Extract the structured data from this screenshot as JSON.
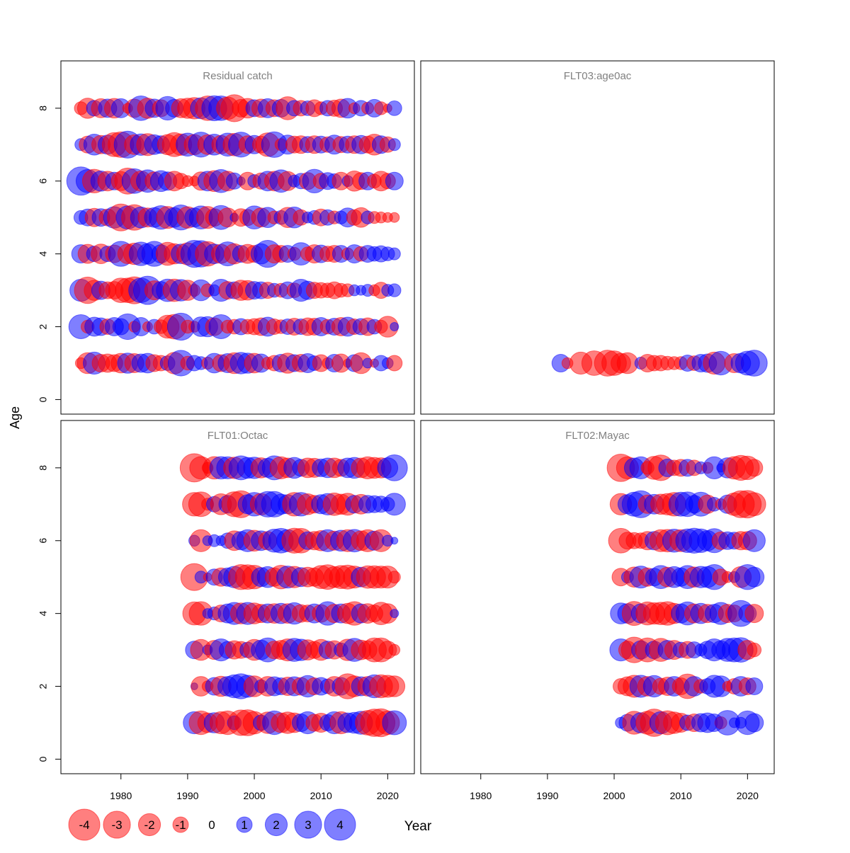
{
  "chart_data": {
    "type": "scatter",
    "xlabel": "Year",
    "ylabel": "Age",
    "xlim": [
      1971,
      2024
    ],
    "ylim": [
      -0.4,
      9.3
    ],
    "x_ticks": [
      1980,
      1990,
      2000,
      2010,
      2020
    ],
    "y_ticks": [
      0,
      2,
      4,
      6,
      8
    ],
    "colors": {
      "negative": "#ff0000",
      "positive": "#0000ff",
      "opacity": 0.5
    },
    "legend": {
      "placement": "bottom-left",
      "labels": [
        "-4",
        "-3",
        "-2",
        "-1",
        "0",
        "1",
        "2",
        "3",
        "4"
      ],
      "values": [
        -4,
        -3,
        -2,
        -1,
        0,
        1,
        2,
        3,
        4
      ]
    },
    "panels": [
      {
        "title": "Residual catch",
        "ages": [
          1,
          2,
          3,
          4,
          5,
          6,
          7,
          8
        ],
        "years": [
          1974,
          1975,
          1976,
          1977,
          1978,
          1979,
          1980,
          1981,
          1982,
          1983,
          1984,
          1985,
          1986,
          1987,
          1988,
          1989,
          1990,
          1991,
          1992,
          1993,
          1994,
          1995,
          1996,
          1997,
          1998,
          1999,
          2000,
          2001,
          2002,
          2003,
          2004,
          2005,
          2006,
          2007,
          2008,
          2009,
          2010,
          2011,
          2012,
          2013,
          2014,
          2015,
          2016,
          2017,
          2018,
          2019,
          2020,
          2021
        ],
        "residuals": [
          [
            -0.5,
            -1.8,
            2.0,
            -1.3,
            -1.4,
            -1.2,
            -1.6,
            1.7,
            -1.5,
            1.4,
            1.6,
            -1.2,
            -1.0,
            0.9,
            -1.9,
            2.7,
            -0.8,
            1.0,
            0.7,
            -0.6,
            1.6,
            -1.2,
            1.5,
            -1.8,
            1.9,
            1.7,
            -1.6,
            1.4,
            -0.6,
            -1.0,
            1.3,
            -1.7,
            1.2,
            -1.3,
            1.5,
            0.9,
            -1.2,
            -0.5,
            1.3,
            -1.4,
            -0.3,
            1.2,
            -1.8,
            0.4,
            -0.3,
            1.0,
            0.5,
            -1.0
          ],
          [
            2.4,
            -0.7,
            1.5,
            1.3,
            -1.0,
            1.4,
            1.1,
            2.7,
            -0.5,
            1.4,
            -0.4,
            0.9,
            -0.8,
            -2.2,
            -2.5,
            3.0,
            -0.7,
            -0.5,
            1.6,
            1.7,
            -1.3,
            2.4,
            -0.7,
            -0.9,
            1.1,
            -0.9,
            -1.1,
            -1.3,
            1.5,
            -1.0,
            -0.8,
            1.0,
            -1.2,
            1.0,
            -1.3,
            -1.2,
            1.4,
            -0.9,
            1.2,
            -1.4,
            1.5,
            -1.0,
            1.1,
            -1.3,
            0.9,
            -0.7,
            -1.8,
            0.3
          ],
          [
            2.0,
            -2.9,
            -1.7,
            1.4,
            -1.2,
            -1.3,
            -2.5,
            -2.5,
            -3.0,
            2.5,
            3.3,
            -1.5,
            1.3,
            2.1,
            -2.1,
            1.9,
            -1.7,
            -0.6,
            1.8,
            -0.7,
            0.5,
            2.0,
            -1.3,
            1.2,
            -1.7,
            -1.6,
            1.3,
            1.2,
            -1.1,
            0.8,
            -0.8,
            1.2,
            -0.9,
            2.0,
            1.4,
            -1.1,
            -1.0,
            -0.9,
            -1.2,
            -0.8,
            -0.7,
            0.5,
            0.4,
            0.6,
            -0.5,
            -1.1,
            0.6,
            0.7
          ],
          [
            1.4,
            -1.5,
            1.0,
            -1.6,
            1.0,
            -1.3,
            2.6,
            -1.6,
            -1.9,
            2.3,
            1.7,
            2.6,
            1.4,
            -2.2,
            -1.7,
            1.6,
            -2.0,
            3.0,
            2.9,
            -2.5,
            1.6,
            -1.5,
            2.4,
            -1.7,
            1.2,
            -1.5,
            -1.2,
            1.7,
            3.0,
            -1.4,
            -1.2,
            1.2,
            -0.7,
            2.1,
            -0.8,
            -1.4,
            1.3,
            -1.0,
            -1.2,
            1.2,
            -0.6,
            1.4,
            -0.9,
            1.2,
            0.9,
            1.1,
            0.8,
            0.6
          ],
          [
            0.8,
            1.2,
            -1.4,
            1.3,
            -1.2,
            1.9,
            -3.0,
            2.2,
            -2.7,
            1.8,
            -1.5,
            1.6,
            2.3,
            -2.0,
            1.6,
            2.6,
            -1.9,
            1.5,
            2.2,
            -2.0,
            -1.3,
            2.4,
            -1.5,
            0.3,
            -1.3,
            -1.1,
            2.2,
            -1.5,
            1.7,
            -0.7,
            0.8,
            -1.7,
            1.8,
            -1.0,
            0.5,
            0.8,
            -1.2,
            1.0,
            -0.7,
            0.7,
            1.5,
            -1.0,
            -1.6,
            0.7,
            -0.6,
            -0.5,
            -0.4,
            -0.4
          ],
          [
            3.3,
            2.2,
            -2.3,
            1.7,
            -1.6,
            1.3,
            -1.5,
            -2.8,
            2.5,
            -1.7,
            2.1,
            -1.4,
            1.8,
            1.4,
            -1.6,
            -1.0,
            -0.5,
            -0.4,
            -1.4,
            1.6,
            -1.8,
            2.2,
            -1.6,
            1.1,
            0.3,
            -1.3,
            0.7,
            -1.1,
            1.6,
            -1.6,
            2.1,
            -1.5,
            0.6,
            1.0,
            -1.2,
            2.3,
            -1.0,
            1.2,
            0.9,
            -1.3,
            0.5,
            -1.7,
            -1.2,
            1.3,
            -0.8,
            -1.6,
            -1.0,
            1.3
          ],
          [
            0.6,
            -1.2,
            1.8,
            -1.4,
            1.5,
            -2.4,
            -2.7,
            3.0,
            -1.6,
            1.9,
            -2.0,
            1.6,
            1.3,
            -1.7,
            -2.4,
            -1.9,
            2.2,
            -1.7,
            2.6,
            -1.6,
            1.8,
            -1.4,
            2.2,
            -2.1,
            2.6,
            -1.3,
            1.4,
            -1.2,
            -2.3,
            2.7,
            -0.6,
            1.5,
            -1.2,
            -1.3,
            1.1,
            -1.3,
            1.2,
            -1.0,
            1.5,
            -1.1,
            1.2,
            -1.3,
            1.4,
            -1.2,
            -1.8,
            1.3,
            -1.0,
            0.6
          ],
          [
            -0.7,
            -1.7,
            1.0,
            -1.5,
            1.4,
            -1.6,
            1.5,
            -0.4,
            -1.4,
            2.5,
            -1.7,
            1.4,
            -1.2,
            2.3,
            1.3,
            -1.5,
            -1.7,
            -1.9,
            1.8,
            -2.5,
            2.6,
            2.5,
            -2.1,
            -3.0,
            -1.3,
            -1.6,
            1.2,
            -1.4,
            1.5,
            -1.2,
            1.3,
            -2.2,
            1.0,
            -1.0,
            0.9,
            -1.2,
            -0.7,
            1.0,
            -1.1,
            -1.4,
            1.6,
            -0.5,
            1.0,
            -0.6,
            1.3,
            -0.7,
            -0.3,
            0.9
          ]
        ]
      },
      {
        "title": "FLT03:age0ac",
        "ages": [
          1
        ],
        "years": [
          1992,
          1993,
          1995,
          1997,
          1999,
          2000,
          2001,
          2002,
          2004,
          2005,
          2006,
          2007,
          2008,
          2009,
          2010,
          2011,
          2012,
          2013,
          2014,
          2015,
          2016,
          2018,
          2019,
          2020,
          2021
        ],
        "residuals": [
          [
            1.3,
            -0.5,
            -2.0,
            -2.5,
            -2.8,
            -2.5,
            -1.6,
            -1.8,
            0.6,
            -1.3,
            -1.0,
            -1.0,
            -0.8,
            -0.7,
            -0.7,
            1.1,
            -0.9,
            1.3,
            1.4,
            -2.0,
            2.3,
            -1.5,
            1.6,
            2.4,
            2.8
          ]
        ]
      },
      {
        "title": "FLT01:Octac",
        "ages": [
          1,
          2,
          3,
          4,
          5,
          6,
          7,
          8
        ],
        "years": [
          1991,
          1992,
          1993,
          1994,
          1995,
          1996,
          1997,
          1998,
          1999,
          2000,
          2001,
          2002,
          2003,
          2004,
          2005,
          2006,
          2007,
          2008,
          2009,
          2010,
          2011,
          2012,
          2013,
          2014,
          2015,
          2016,
          2017,
          2018,
          2019,
          2020,
          2021
        ],
        "residuals": [
          [
            2.0,
            -2.3,
            -1.6,
            1.7,
            -2.0,
            -2.3,
            0.8,
            -2.7,
            -2.8,
            -2.1,
            1.0,
            -1.9,
            2.3,
            -1.6,
            -1.9,
            -1.6,
            1.3,
            2.0,
            -1.2,
            -1.5,
            1.1,
            2.0,
            -2.0,
            1.6,
            1.8,
            2.2,
            -2.5,
            -3.1,
            -3.2,
            -2.3,
            2.4
          ],
          [
            0.2,
            -1.6,
            -0.5,
            1.3,
            -1.7,
            1.6,
            2.2,
            2.6,
            2.0,
            -1.8,
            0.7,
            -1.6,
            1.5,
            1.2,
            -1.4,
            1.5,
            -1.3,
            1.9,
            -1.2,
            1.3,
            0.9,
            -1.6,
            1.3,
            -2.6,
            -1.8,
            1.5,
            -1.6,
            2.2,
            -2.2,
            -2.0,
            -1.8
          ],
          [
            1.3,
            -1.8,
            0.4,
            -1.5,
            2.0,
            1.2,
            -1.4,
            -1.2,
            1.0,
            -1.8,
            1.6,
            2.4,
            -1.3,
            -1.5,
            -2.0,
            2.2,
            1.9,
            -1.7,
            -1.2,
            -1.8,
            1.3,
            -1.4,
            0.8,
            -1.9,
            2.2,
            -1.6,
            -1.4,
            -2.4,
            -2.4,
            -1.3,
            -0.5
          ],
          [
            -2.2,
            -2.3,
            0.4,
            0.7,
            -1.2,
            1.5,
            2.0,
            -1.8,
            2.0,
            -1.8,
            -1.4,
            1.5,
            -1.6,
            1.7,
            -1.6,
            1.9,
            -1.3,
            -1.2,
            1.5,
            -1.3,
            2.3,
            -1.4,
            1.5,
            -1.7,
            -2.3,
            1.5,
            -1.6,
            -1.2,
            -2.1,
            -1.6,
            0.3
          ],
          [
            -3.0,
            0.6,
            -0.3,
            1.1,
            -1.4,
            1.4,
            1.9,
            -2.6,
            -2.5,
            -2.3,
            1.5,
            1.8,
            -1.4,
            -2.3,
            2.0,
            -1.9,
            1.5,
            -1.6,
            -1.4,
            -2.2,
            -2.5,
            -1.8,
            -2.2,
            -2.4,
            -2.0,
            1.6,
            -2.1,
            -2.1,
            -2.0,
            -2.0,
            -0.6
          ],
          [
            0.5,
            -2.0,
            0.4,
            0.6,
            0.4,
            1.0,
            -1.6,
            1.4,
            2.0,
            -1.8,
            1.6,
            -1.4,
            2.2,
            2.5,
            2.0,
            -2.6,
            -2.5,
            1.3,
            -1.4,
            -1.7,
            2.0,
            -1.5,
            1.8,
            -2.0,
            2.1,
            -1.6,
            -2.0,
            1.5,
            -2.0,
            0.5,
            0.2
          ],
          [
            -2.3,
            -2.5,
            -0.6,
            1.0,
            -1.8,
            1.3,
            -2.6,
            -3.0,
            1.5,
            2.3,
            -1.9,
            2.7,
            2.7,
            1.7,
            1.5,
            -2.3,
            2.3,
            -1.8,
            -1.3,
            1.5,
            1.9,
            -2.1,
            -1.7,
            -2.0,
            1.3,
            -1.6,
            1.3,
            1.2,
            1.1,
            0.8,
            2.0
          ],
          [
            -3.3,
            -2.1,
            -0.5,
            -2.1,
            2.1,
            2.0,
            -1.9,
            2.4,
            1.8,
            1.9,
            -1.7,
            1.5,
            2.4,
            -2.0,
            -1.6,
            1.8,
            1.2,
            -1.6,
            -1.5,
            1.3,
            1.6,
            -1.6,
            -1.2,
            1.6,
            1.8,
            -1.6,
            -2.0,
            -1.8,
            -1.7,
            1.7,
            2.8
          ]
        ]
      },
      {
        "title": "FLT02:Mayac",
        "ages": [
          1,
          2,
          3,
          4,
          5,
          6,
          7,
          8
        ],
        "years": [
          2001,
          2002,
          2003,
          2004,
          2005,
          2006,
          2007,
          2008,
          2009,
          2010,
          2011,
          2012,
          2013,
          2014,
          2015,
          2016,
          2017,
          2018,
          2019,
          2020,
          2021
        ],
        "residuals": [
          [
            0.5,
            1.2,
            -2.2,
            1.7,
            -2.2,
            -3.1,
            2.0,
            -2.4,
            -1.9,
            -1.5,
            1.0,
            -1.3,
            1.4,
            1.6,
            1.3,
            -0.6,
            2.5,
            0.4,
            0.5,
            2.3,
            1.4
          ],
          [
            -1.0,
            -1.5,
            -2.0,
            2.0,
            -1.6,
            1.9,
            -1.1,
            -1.4,
            1.6,
            -1.2,
            -2.5,
            1.6,
            -0.8,
            1.0,
            2.0,
            1.8,
            -0.4,
            -1.0,
            1.6,
            -1.2,
            1.2
          ],
          [
            2.0,
            -1.3,
            -2.7,
            1.4,
            -2.4,
            1.3,
            -2.2,
            1.5,
            -1.5,
            1.0,
            -1.2,
            1.1,
            0.6,
            1.3,
            2.0,
            1.4,
            2.2,
            2.4,
            2.5,
            -1.5,
            -0.8
          ],
          [
            1.8,
            1.6,
            -2.4,
            1.5,
            -2.2,
            -1.9,
            -2.1,
            -2.3,
            -1.7,
            1.5,
            2.2,
            -1.5,
            1.7,
            -1.4,
            1.4,
            2.0,
            -1.4,
            -1.2,
            2.8,
            1.3,
            -1.4
          ],
          [
            -1.3,
            0.6,
            -1.7,
            2.0,
            -1.4,
            1.3,
            2.2,
            -1.6,
            1.8,
            1.4,
            2.2,
            -1.7,
            1.9,
            1.8,
            2.6,
            -1.1,
            -0.5,
            0.5,
            -1.8,
            2.6,
            1.6
          ],
          [
            -2.5,
            -1.2,
            -1.1,
            -1.0,
            -1.4,
            1.4,
            -2.0,
            -2.1,
            2.2,
            -2.0,
            2.3,
            2.6,
            2.3,
            1.7,
            2.4,
            -1.3,
            1.3,
            1.2,
            -1.4,
            -1.4,
            2.0
          ],
          [
            -1.9,
            1.5,
            2.4,
            3.0,
            -1.4,
            1.6,
            -1.7,
            -1.9,
            -2.3,
            2.4,
            2.5,
            1.3,
            2.4,
            -1.4,
            0.8,
            -0.5,
            1.4,
            -2.1,
            -3.0,
            -3.1,
            -2.2
          ],
          [
            -3.1,
            -2.0,
            1.6,
            2.0,
            -0.7,
            -2.2,
            -2.7,
            1.3,
            -1.0,
            -1.2,
            1.2,
            -1.0,
            0.6,
            -0.5,
            2.0,
            0.3,
            1.7,
            -2.1,
            -2.6,
            -2.3,
            -1.2
          ]
        ]
      }
    ]
  }
}
